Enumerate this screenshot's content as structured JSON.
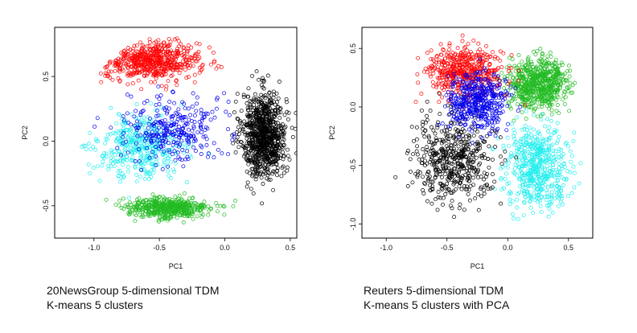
{
  "captions": {
    "left_line1": "20NewsGroup 5-dimensional TDM",
    "left_line2": "K-means 5 clusters",
    "right_line1": "Reuters 5-dimensional TDM",
    "right_line2": "K-means 5 clusters with PCA"
  },
  "colors": {
    "cluster_red": "#ff0000",
    "cluster_blue": "#0000ee",
    "cluster_cyan": "#22eeee",
    "cluster_green": "#22bb22",
    "cluster_black": "#000000"
  },
  "chart_data": [
    {
      "type": "scatter",
      "marker": "open circle",
      "xlabel": "PC1",
      "ylabel": "PC2",
      "xlim": [
        -1.3,
        0.55
      ],
      "ylim": [
        -0.75,
        0.88
      ],
      "xticks": [
        "-1.0",
        "-0.5",
        "0.0",
        "0.5"
      ],
      "xtick_values": [
        -1.0,
        -0.5,
        0.0,
        0.5
      ],
      "yticks": [
        "-0.5",
        "0.0",
        "0.5"
      ],
      "ytick_values": [
        -0.5,
        0.0,
        0.5
      ],
      "grid": false,
      "legend": "none",
      "clusters": [
        {
          "color": "cluster_black",
          "center": [
            0.3,
            0.05
          ],
          "spread": [
            0.14,
            0.27
          ],
          "count": 900,
          "region": "right crescent"
        },
        {
          "color": "cluster_red",
          "center": [
            -0.55,
            0.62
          ],
          "spread": [
            0.3,
            0.12
          ],
          "count": 600,
          "region": "top arc"
        },
        {
          "color": "cluster_green",
          "center": [
            -0.45,
            -0.52
          ],
          "spread": [
            0.28,
            0.07
          ],
          "count": 500,
          "region": "bottom band"
        },
        {
          "color": "cluster_cyan",
          "center": [
            -0.65,
            -0.05
          ],
          "spread": [
            0.28,
            0.2
          ],
          "count": 400,
          "region": "left middle"
        },
        {
          "color": "cluster_blue",
          "center": [
            -0.4,
            0.1
          ],
          "spread": [
            0.3,
            0.22
          ],
          "count": 300,
          "region": "scattered middle"
        }
      ]
    },
    {
      "type": "scatter",
      "marker": "open circle",
      "xlabel": "PC1",
      "ylabel": "PC2",
      "xlim": [
        -1.2,
        0.7
      ],
      "ylim": [
        -1.12,
        0.68
      ],
      "xticks": [
        "-1.0",
        "-0.5",
        "0.0",
        "0.5"
      ],
      "xtick_values": [
        -1.0,
        -0.5,
        0.0,
        0.5
      ],
      "yticks": [
        "-1.0",
        "-0.5",
        "0.0",
        "0.5"
      ],
      "ytick_values": [
        -1.0,
        -0.5,
        0.0,
        0.5
      ],
      "grid": false,
      "legend": "none",
      "clusters": [
        {
          "color": "cluster_green",
          "center": [
            0.25,
            0.2
          ],
          "spread": [
            0.2,
            0.18
          ],
          "count": 650,
          "region": "upper right"
        },
        {
          "color": "cluster_cyan",
          "center": [
            0.25,
            -0.5
          ],
          "spread": [
            0.22,
            0.28
          ],
          "count": 550,
          "region": "lower right"
        },
        {
          "color": "cluster_black",
          "center": [
            -0.45,
            -0.45
          ],
          "spread": [
            0.28,
            0.3
          ],
          "count": 500,
          "region": "lower left"
        },
        {
          "color": "cluster_red",
          "center": [
            -0.35,
            0.3
          ],
          "spread": [
            0.26,
            0.18
          ],
          "count": 500,
          "region": "upper left"
        },
        {
          "color": "cluster_blue",
          "center": [
            -0.25,
            0.05
          ],
          "spread": [
            0.2,
            0.2
          ],
          "count": 450,
          "region": "center"
        }
      ]
    }
  ]
}
